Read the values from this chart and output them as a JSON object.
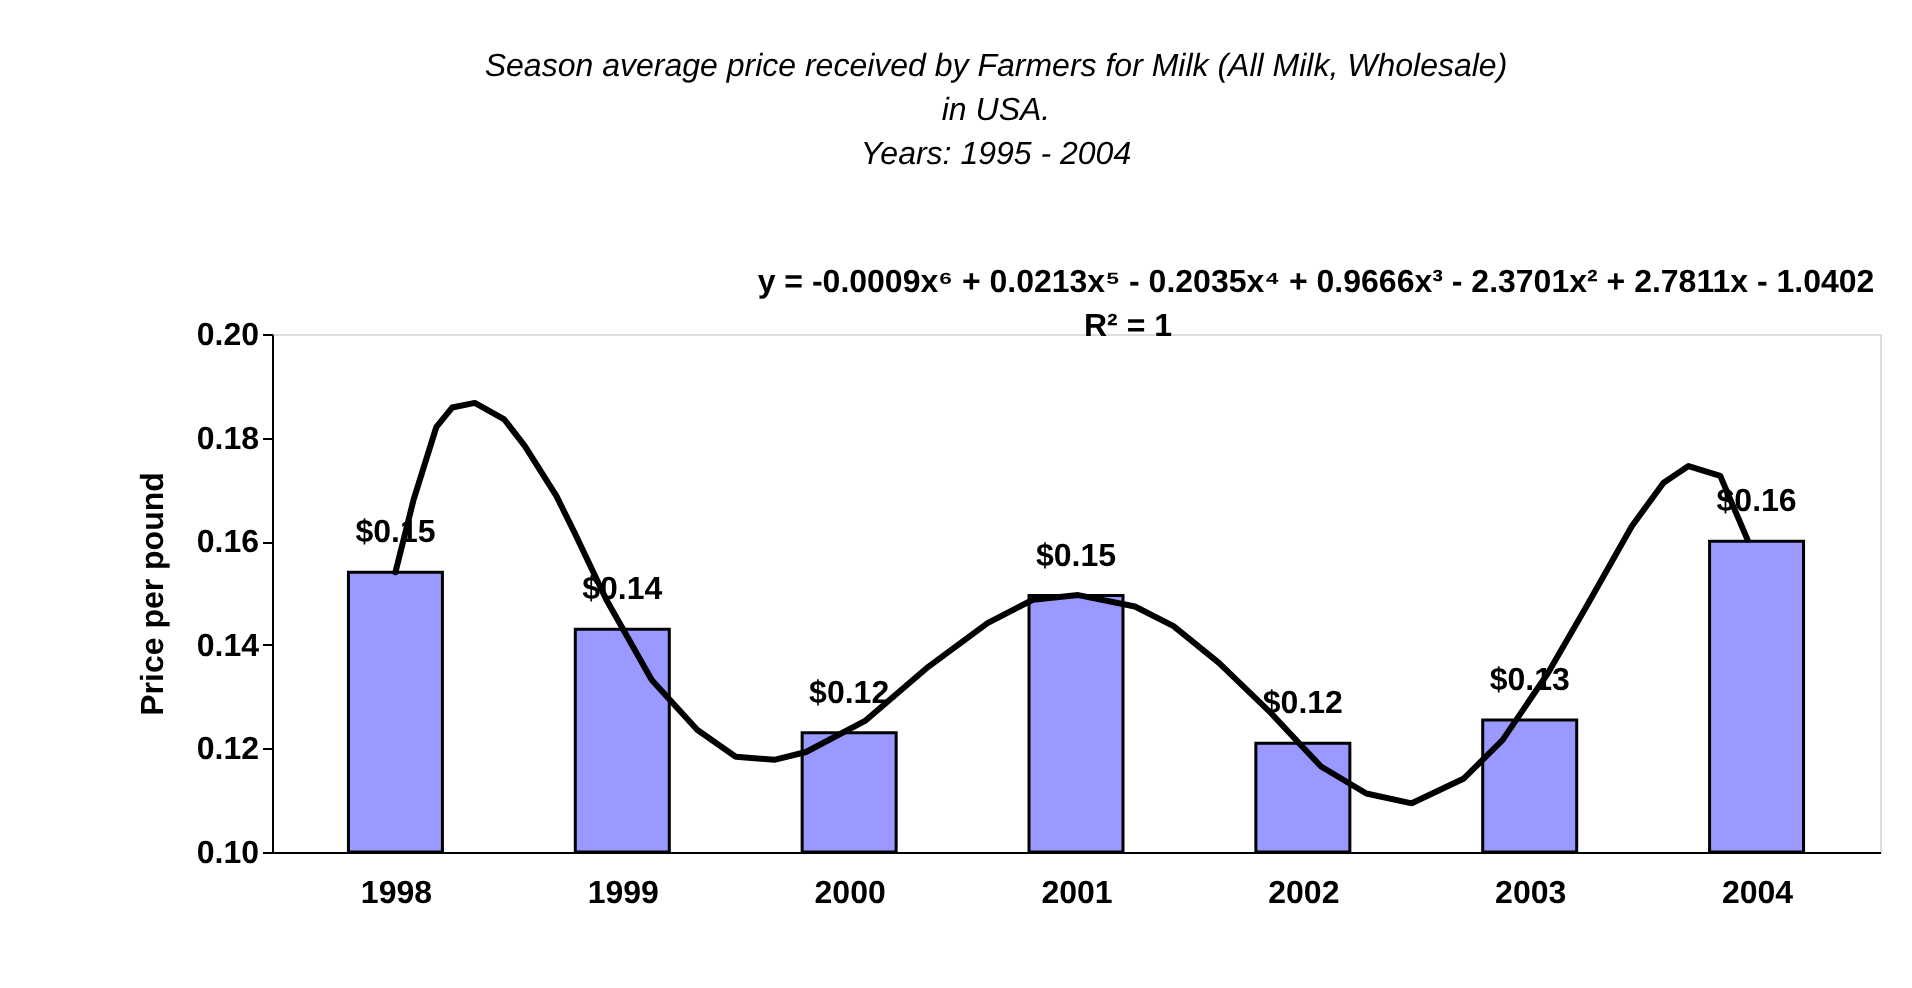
{
  "chart_data": {
    "type": "bar",
    "title": "Season average price received by  Farmers for Milk (All Milk, Wholesale)  in USA.",
    "subtitle": "Years: 1995 - 2004",
    "ylabel": "Price per pound",
    "x": [
      1998,
      1999,
      2000,
      2001,
      2002,
      2003,
      2004
    ],
    "xlim": [
      1997.5,
      2004.5
    ],
    "xticks": [
      1998,
      1999,
      2000,
      2001,
      2002,
      2003,
      2004
    ],
    "ylim": [
      0.1,
      0.2
    ],
    "yticks": [
      {
        "value": 0.1,
        "label": "0.10"
      },
      0.12,
      0.14,
      0.16,
      0.18,
      {
        "value": 0.2,
        "label": "0.20"
      }
    ],
    "grid": false,
    "annotations": [
      "y = -0.0009x⁶ + 0.0213x⁵ - 0.2035x⁴ + 0.9666x³ - 2.3701x² + 2.7811x - 1.0402",
      "R² = 1"
    ],
    "series": [
      {
        "color": "#9999ff",
        "values": [
          0.154,
          0.143,
          0.123,
          0.1495,
          0.121,
          0.1255,
          0.16
        ],
        "value_labels": [
          "$0.15",
          "$0.14",
          "$0.12",
          "$0.15",
          "$0.12",
          "$0.13",
          "$0.16"
        ]
      },
      {
        "type": "line",
        "color": "#000000",
        "line_style": "solid",
        "marker": "none",
        "x": [
          1998.0,
          1998.08,
          1998.18,
          1998.25,
          1998.35,
          1998.48,
          1998.57,
          1998.71,
          1998.79,
          1998.93,
          1999.13,
          1999.33,
          1999.5,
          1999.67,
          1999.81,
          2000.07,
          2000.35,
          2000.61,
          2000.81,
          2001.01,
          2001.26,
          2001.43,
          2001.63,
          2001.86,
          2002.08,
          2002.28,
          2002.48,
          2002.71,
          2002.88,
          2003.08,
          2003.25,
          2003.45,
          2003.59,
          2003.7,
          2003.84,
          2003.96
        ],
        "values": [
          0.154,
          0.168,
          0.182,
          0.1858,
          0.1867,
          0.1835,
          0.1784,
          0.1687,
          0.1616,
          0.1487,
          0.1332,
          0.1236,
          0.1184,
          0.1178,
          0.1193,
          0.1253,
          0.1358,
          0.1442,
          0.1487,
          0.1496,
          0.1474,
          0.1436,
          0.1365,
          0.1268,
          0.1165,
          0.1113,
          0.1094,
          0.1142,
          0.1216,
          0.1345,
          0.1474,
          0.1629,
          0.1713,
          0.1745,
          0.1726,
          0.1603
        ]
      }
    ]
  }
}
